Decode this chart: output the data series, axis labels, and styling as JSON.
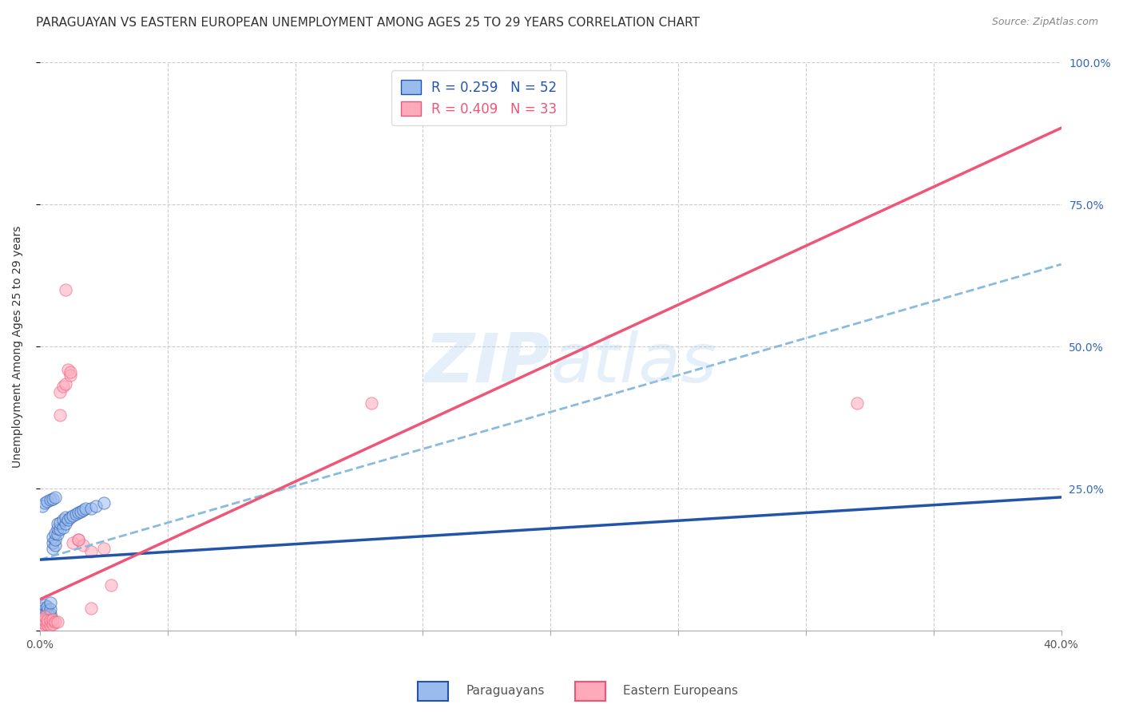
{
  "title": "PARAGUAYAN VS EASTERN EUROPEAN UNEMPLOYMENT AMONG AGES 25 TO 29 YEARS CORRELATION CHART",
  "source": "Source: ZipAtlas.com",
  "ylabel": "Unemployment Among Ages 25 to 29 years",
  "xlim": [
    0.0,
    0.4
  ],
  "ylim": [
    0.0,
    1.0
  ],
  "blue_R": 0.259,
  "blue_N": 52,
  "pink_R": 0.409,
  "pink_N": 33,
  "blue_color": "#99BBEE",
  "pink_color": "#FFAABB",
  "blue_line_color": "#2255AA",
  "pink_line_color": "#EE5577",
  "dashed_line_color": "#88BBDD",
  "background_color": "#FFFFFF",
  "watermark_color": "#AACCEE",
  "legend_label_blue": "Paraguayans",
  "legend_label_pink": "Eastern Europeans",
  "blue_line": [
    0.0,
    0.125,
    0.4,
    0.235
  ],
  "pink_line": [
    0.0,
    0.055,
    0.4,
    0.885
  ],
  "dash_line": [
    0.0,
    0.125,
    0.4,
    0.645
  ],
  "title_fontsize": 11,
  "axis_label_fontsize": 10,
  "tick_fontsize": 10,
  "legend_fontsize": 12,
  "blue_scatter_x": [
    0.0005,
    0.001,
    0.001,
    0.001,
    0.001,
    0.0015,
    0.0015,
    0.002,
    0.002,
    0.002,
    0.002,
    0.002,
    0.003,
    0.003,
    0.003,
    0.003,
    0.004,
    0.004,
    0.004,
    0.004,
    0.005,
    0.005,
    0.005,
    0.006,
    0.006,
    0.006,
    0.007,
    0.007,
    0.007,
    0.008,
    0.008,
    0.009,
    0.009,
    0.01,
    0.01,
    0.011,
    0.012,
    0.013,
    0.014,
    0.015,
    0.016,
    0.017,
    0.018,
    0.02,
    0.022,
    0.025,
    0.001,
    0.002,
    0.003,
    0.004,
    0.005,
    0.006
  ],
  "blue_scatter_y": [
    0.03,
    0.025,
    0.035,
    0.04,
    0.02,
    0.028,
    0.035,
    0.02,
    0.025,
    0.03,
    0.038,
    0.045,
    0.022,
    0.028,
    0.035,
    0.042,
    0.025,
    0.03,
    0.038,
    0.05,
    0.145,
    0.155,
    0.165,
    0.15,
    0.16,
    0.172,
    0.17,
    0.18,
    0.188,
    0.178,
    0.19,
    0.182,
    0.195,
    0.188,
    0.2,
    0.195,
    0.2,
    0.202,
    0.205,
    0.208,
    0.21,
    0.212,
    0.215,
    0.215,
    0.22,
    0.225,
    0.22,
    0.225,
    0.228,
    0.23,
    0.232,
    0.235
  ],
  "pink_scatter_x": [
    0.0005,
    0.001,
    0.001,
    0.001,
    0.002,
    0.002,
    0.002,
    0.003,
    0.003,
    0.004,
    0.004,
    0.005,
    0.005,
    0.006,
    0.007,
    0.008,
    0.009,
    0.01,
    0.011,
    0.012,
    0.013,
    0.015,
    0.017,
    0.02,
    0.025,
    0.028,
    0.008,
    0.01,
    0.012,
    0.015,
    0.32,
    0.13,
    0.02
  ],
  "pink_scatter_y": [
    0.015,
    0.01,
    0.015,
    0.02,
    0.012,
    0.018,
    0.025,
    0.012,
    0.018,
    0.01,
    0.018,
    0.012,
    0.02,
    0.015,
    0.015,
    0.42,
    0.43,
    0.435,
    0.46,
    0.45,
    0.155,
    0.16,
    0.15,
    0.14,
    0.145,
    0.08,
    0.38,
    0.6,
    0.455,
    0.16,
    0.4,
    0.4,
    0.04
  ]
}
